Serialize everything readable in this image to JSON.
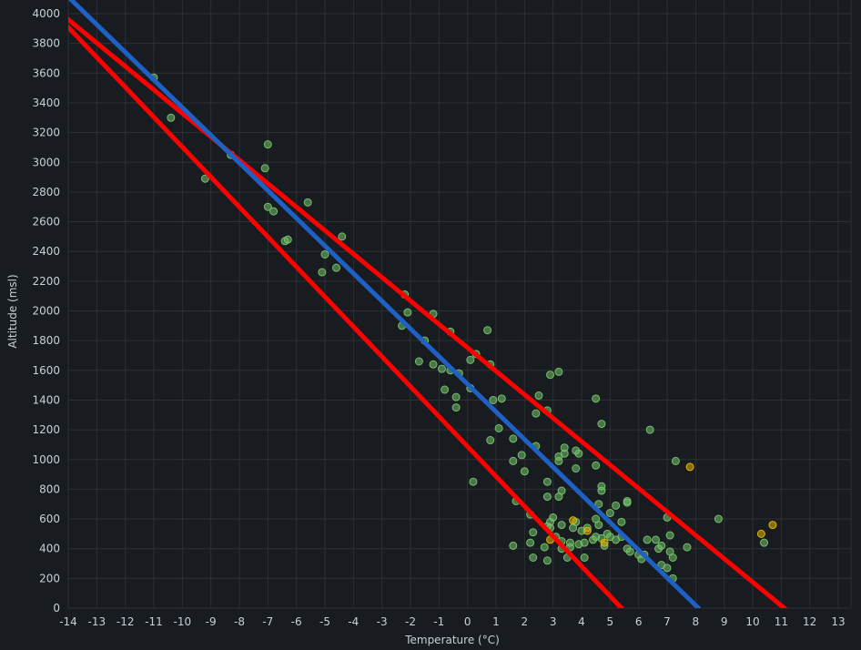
{
  "chart_data": {
    "type": "scatter",
    "xlabel": "Temperature (°C)",
    "ylabel": "Altitude (msl)",
    "xlim": [
      -14,
      13
    ],
    "ylim": [
      0,
      4000
    ],
    "x_ticks": [
      -14,
      -13,
      -12,
      -11,
      -10,
      -9,
      -8,
      -7,
      -6,
      -5,
      -4,
      -3,
      -2,
      -1,
      0,
      1,
      2,
      3,
      4,
      5,
      6,
      7,
      8,
      9,
      10,
      11,
      12,
      13
    ],
    "y_ticks": [
      0,
      200,
      400,
      600,
      800,
      1000,
      1200,
      1400,
      1600,
      1800,
      2000,
      2200,
      2400,
      2600,
      2800,
      3000,
      3200,
      3400,
      3600,
      3800,
      4000
    ],
    "grid": true,
    "colors": {
      "background": "#181b1f",
      "grid": "#2c3035",
      "text": "#c7d0d9",
      "point_green": "#73bf69",
      "point_yellow": "#e0b400",
      "bound_line": "#ff0000",
      "fit_line": "#1f60c4"
    },
    "lines": [
      {
        "role": "upper-bound",
        "color": "#ff0000",
        "points": [
          [
            -15.2,
            4150
          ],
          [
            11.3,
            -30
          ]
        ]
      },
      {
        "role": "fit",
        "color": "#1f60c4",
        "points": [
          [
            -14.2,
            4150
          ],
          [
            8.1,
            0
          ]
        ]
      },
      {
        "role": "lower-bound",
        "color": "#ff0000",
        "points": [
          [
            -15.2,
            4150
          ],
          [
            5.4,
            0
          ]
        ]
      }
    ],
    "series": [
      {
        "color": "#73bf69",
        "points": [
          [
            -11,
            3570
          ],
          [
            -10.4,
            3300
          ],
          [
            -9.2,
            2890
          ],
          [
            -8.3,
            3050
          ],
          [
            -7.1,
            2960
          ],
          [
            -7,
            3120
          ],
          [
            -7,
            2700
          ],
          [
            -6.8,
            2670
          ],
          [
            -6.4,
            2470
          ],
          [
            -6.3,
            2480
          ],
          [
            -5.6,
            2730
          ],
          [
            -5,
            2380
          ],
          [
            -5.1,
            2260
          ],
          [
            -4.6,
            2290
          ],
          [
            -4.4,
            2500
          ],
          [
            -2.2,
            2110
          ],
          [
            -2.1,
            1990
          ],
          [
            -2.3,
            1900
          ],
          [
            -1.7,
            1660
          ],
          [
            -1.2,
            1980
          ],
          [
            -1.5,
            1800
          ],
          [
            -1.2,
            1640
          ],
          [
            -0.9,
            1610
          ],
          [
            -0.8,
            1470
          ],
          [
            -0.6,
            1600
          ],
          [
            -0.4,
            1420
          ],
          [
            -0.4,
            1350
          ],
          [
            -0.6,
            1860
          ],
          [
            -0.3,
            1580
          ],
          [
            0.1,
            1480
          ],
          [
            0.1,
            1670
          ],
          [
            0.3,
            1710
          ],
          [
            0.7,
            1870
          ],
          [
            0.8,
            1640
          ],
          [
            0.9,
            1400
          ],
          [
            1.2,
            1410
          ],
          [
            0.8,
            1130
          ],
          [
            1.1,
            1210
          ],
          [
            1.6,
            1140
          ],
          [
            0.2,
            850
          ],
          [
            1.9,
            1030
          ],
          [
            1.6,
            990
          ],
          [
            2.4,
            1090
          ],
          [
            2.5,
            1430
          ],
          [
            2.4,
            1310
          ],
          [
            2.8,
            1330
          ],
          [
            2.9,
            1570
          ],
          [
            3.2,
            1590
          ],
          [
            3.2,
            1020
          ],
          [
            3.2,
            990
          ],
          [
            3.4,
            1080
          ],
          [
            3.4,
            1040
          ],
          [
            3.8,
            1060
          ],
          [
            3.9,
            1040
          ],
          [
            4.5,
            1410
          ],
          [
            4.7,
            1240
          ],
          [
            6.4,
            1200
          ],
          [
            7.3,
            990
          ],
          [
            2.0,
            920
          ],
          [
            2.8,
            850
          ],
          [
            2.8,
            750
          ],
          [
            3.2,
            750
          ],
          [
            3.3,
            790
          ],
          [
            3.8,
            940
          ],
          [
            4.5,
            960
          ],
          [
            4.7,
            820
          ],
          [
            4.7,
            790
          ],
          [
            4.6,
            700
          ],
          [
            5.0,
            640
          ],
          [
            5.2,
            690
          ],
          [
            5.6,
            710
          ],
          [
            5.6,
            720
          ],
          [
            5.4,
            580
          ],
          [
            7.0,
            610
          ],
          [
            8.8,
            600
          ],
          [
            1.7,
            720
          ],
          [
            2.2,
            630
          ],
          [
            2.3,
            510
          ],
          [
            2.2,
            440
          ],
          [
            1.6,
            420
          ],
          [
            2.3,
            340
          ],
          [
            2.7,
            410
          ],
          [
            2.8,
            550
          ],
          [
            2.8,
            320
          ],
          [
            2.9,
            540
          ],
          [
            3.0,
            610
          ],
          [
            3.1,
            480
          ],
          [
            3.3,
            450
          ],
          [
            3.3,
            400
          ],
          [
            3.5,
            340
          ],
          [
            3.6,
            440
          ],
          [
            3.7,
            540
          ],
          [
            3.8,
            580
          ],
          [
            3.9,
            430
          ],
          [
            4.0,
            520
          ],
          [
            4.1,
            440
          ],
          [
            4.1,
            340
          ],
          [
            4.2,
            540
          ],
          [
            4.4,
            460
          ],
          [
            4.5,
            600
          ],
          [
            4.5,
            480
          ],
          [
            4.6,
            560
          ],
          [
            4.7,
            470
          ],
          [
            4.8,
            420
          ],
          [
            4.9,
            500
          ],
          [
            5.0,
            480
          ],
          [
            5.2,
            460
          ],
          [
            5.4,
            480
          ],
          [
            5.6,
            400
          ],
          [
            5.7,
            380
          ],
          [
            6.0,
            360
          ],
          [
            6.1,
            330
          ],
          [
            6.2,
            360
          ],
          [
            6.3,
            460
          ],
          [
            6.6,
            460
          ],
          [
            6.7,
            400
          ],
          [
            6.8,
            420
          ],
          [
            6.8,
            290
          ],
          [
            7.0,
            270
          ],
          [
            7.1,
            380
          ],
          [
            7.1,
            490
          ],
          [
            7.2,
            340
          ],
          [
            7.2,
            200
          ],
          [
            7.7,
            410
          ],
          [
            10.4,
            440
          ],
          [
            2.9,
            580
          ],
          [
            3.3,
            560
          ],
          [
            3.6,
            410
          ]
        ]
      },
      {
        "color": "#e0b400",
        "points": [
          [
            7.8,
            950
          ],
          [
            10.3,
            500
          ],
          [
            10.7,
            560
          ],
          [
            3.7,
            590
          ],
          [
            4.2,
            520
          ],
          [
            4.8,
            440
          ],
          [
            2.9,
            460
          ]
        ]
      }
    ]
  }
}
